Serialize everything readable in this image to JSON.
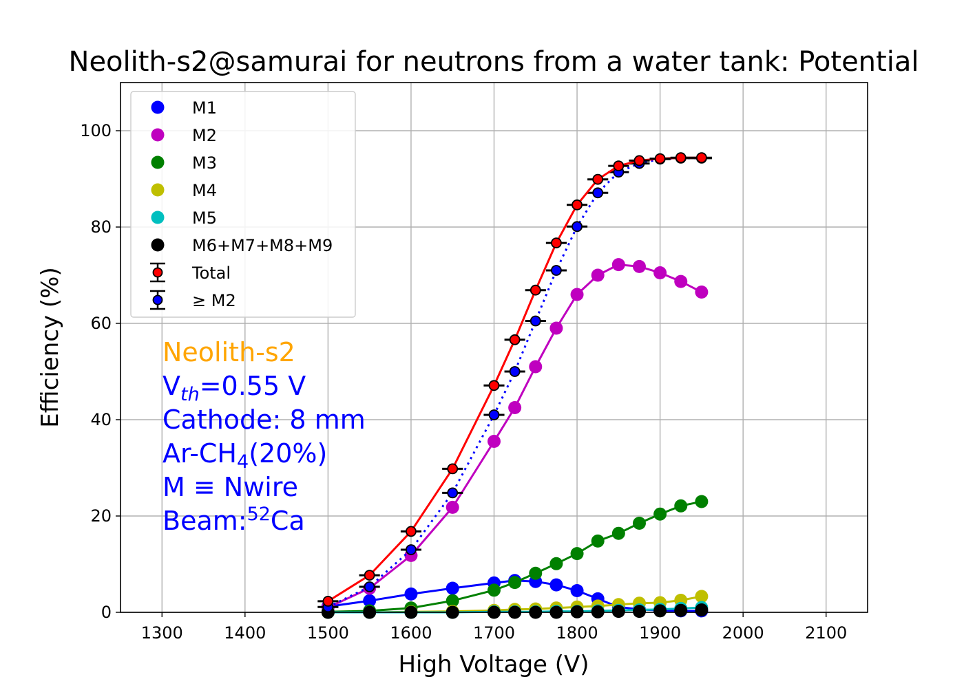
{
  "chart_data": {
    "type": "line",
    "title": "Neolith-s2@samurai for neutrons from a water tank: Potential",
    "xlabel": "High Voltage (V)",
    "ylabel": "Efficiency (%)",
    "xlim": [
      1250,
      2150
    ],
    "ylim": [
      0,
      110
    ],
    "xticks": [
      1300,
      1400,
      1500,
      1600,
      1700,
      1800,
      1900,
      2000,
      2100
    ],
    "yticks": [
      0,
      20,
      40,
      60,
      80,
      100
    ],
    "grid": true,
    "legend_position": "upper-left",
    "x": [
      1500,
      1550,
      1600,
      1650,
      1700,
      1725,
      1750,
      1775,
      1800,
      1825,
      1850,
      1875,
      1900,
      1925,
      1950
    ],
    "series": [
      {
        "name": "M1",
        "color": "#0000ff",
        "marker": "circle",
        "line": "solid",
        "values": [
          1.2,
          2.4,
          3.8,
          5.0,
          6.1,
          6.6,
          6.4,
          5.7,
          4.5,
          2.8,
          1.1,
          0.6,
          0.4,
          0.3,
          0.3
        ]
      },
      {
        "name": "M2",
        "color": "#bf00bf",
        "marker": "circle",
        "line": "solid",
        "values": [
          1.0,
          5.0,
          11.8,
          21.8,
          35.5,
          42.5,
          51.0,
          59.0,
          66.0,
          70.0,
          72.2,
          71.8,
          70.5,
          68.7,
          66.5
        ]
      },
      {
        "name": "M3",
        "color": "#008000",
        "marker": "circle",
        "line": "solid",
        "values": [
          0.1,
          0.3,
          0.9,
          2.4,
          4.6,
          6.2,
          8.1,
          10.1,
          12.2,
          14.8,
          16.4,
          18.5,
          20.4,
          22.1,
          23.0
        ]
      },
      {
        "name": "M4",
        "color": "#bfbf00",
        "marker": "circle",
        "line": "solid",
        "values": [
          0.0,
          0.0,
          0.1,
          0.2,
          0.4,
          0.6,
          0.7,
          0.9,
          1.1,
          1.3,
          1.6,
          1.9,
          2.0,
          2.5,
          3.3
        ]
      },
      {
        "name": "M5",
        "color": "#00bfbf",
        "marker": "circle",
        "line": "solid",
        "values": [
          0.0,
          0.0,
          0.0,
          0.0,
          0.1,
          0.1,
          0.1,
          0.2,
          0.2,
          0.3,
          0.4,
          0.5,
          0.6,
          0.8,
          1.0
        ]
      },
      {
        "name": "M6+M7+M8+M9",
        "color": "#000000",
        "marker": "circle",
        "line": "none",
        "values": [
          0.0,
          0.0,
          0.0,
          0.0,
          0.0,
          0.0,
          0.0,
          0.0,
          0.1,
          0.1,
          0.2,
          0.2,
          0.3,
          0.4,
          0.5
        ]
      },
      {
        "name": "Total",
        "color": "#ff0000",
        "marker": "circle-errorbar",
        "line": "solid",
        "values": [
          2.3,
          7.7,
          16.8,
          29.8,
          47.1,
          56.6,
          66.9,
          76.7,
          84.6,
          89.9,
          92.7,
          93.8,
          94.2,
          94.4,
          94.4
        ],
        "xerr": 12.5
      },
      {
        "name": "≥ M2",
        "color": "#0000ff",
        "marker": "circle-errorbar",
        "line": "dotted",
        "values": [
          1.1,
          5.3,
          13.0,
          24.8,
          41.0,
          50.0,
          60.5,
          71.0,
          80.1,
          87.1,
          91.4,
          93.2,
          94.1,
          94.3,
          94.3
        ],
        "xerr": 12.5
      }
    ],
    "annotations": {
      "detector": {
        "text": "Neolith-s2",
        "color": "#ffa500"
      },
      "lines_color": "#0000ff",
      "vth": {
        "main": "V",
        "sub": "th",
        "rest": "=0.55 V"
      },
      "cathode": "Cathode: 8 mm",
      "gas": {
        "main": "Ar-CH",
        "sub": "4",
        "rest": "(20%)"
      },
      "mult": "M ≡ Nwire",
      "beam": {
        "main": "Beam:",
        "sup": "52",
        "rest": "Ca"
      }
    }
  }
}
